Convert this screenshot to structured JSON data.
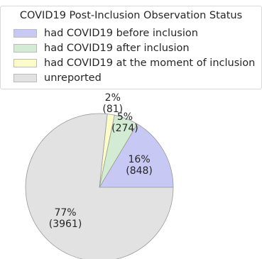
{
  "chart_data": {
    "type": "pie",
    "legend": {
      "title": "COVID19 Post-Inclusion Observation Status",
      "placement": "top",
      "entries": [
        {
          "label": "had COVID19 before inclusion",
          "color": "#c8c8f5"
        },
        {
          "label": "had COVID19 after inclusion",
          "color": "#d3ebd3"
        },
        {
          "label": "had COVID19 at the moment of inclusion",
          "color": "#fcfcc8"
        },
        {
          "label": "unreported",
          "color": "#e2e2e2"
        }
      ]
    },
    "slices": [
      {
        "name": "had COVID19 before inclusion",
        "value": 848,
        "percent_label": "16%",
        "count_label": "(848)",
        "color": "#c8c8f5"
      },
      {
        "name": "had COVID19 after inclusion",
        "value": 274,
        "percent_label": "5%",
        "count_label": "(274)",
        "color": "#d3ebd3"
      },
      {
        "name": "had COVID19 at the moment of inclusion",
        "value": 81,
        "percent_label": "2%",
        "count_label": "(81)",
        "color": "#fcfcc8"
      },
      {
        "name": "unreported",
        "value": 3961,
        "percent_label": "77%",
        "count_label": "(3961)",
        "color": "#e2e2e2"
      }
    ],
    "start_angle_deg": 0,
    "direction": "counterclockwise",
    "edge_color": "#9a9a9a"
  }
}
